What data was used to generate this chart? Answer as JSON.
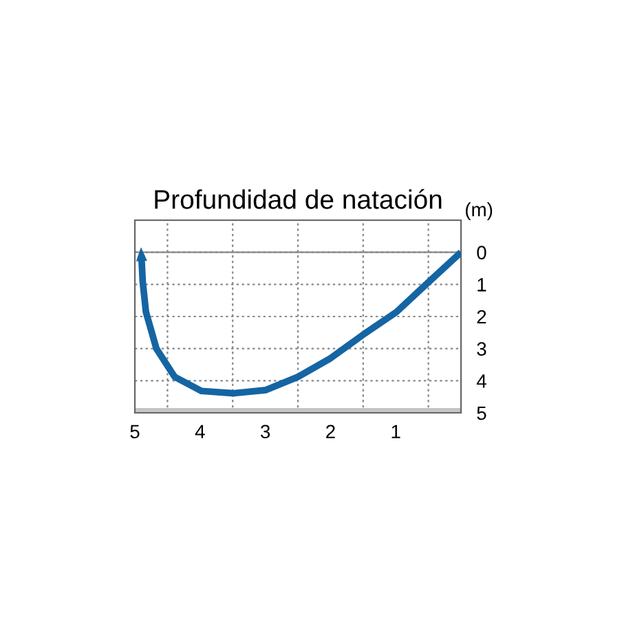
{
  "chart_data": {
    "type": "line",
    "title": "Profundidad de natación",
    "ylabel": "(m)",
    "x": [
      0,
      0.53,
      0.99,
      1.51,
      2.0,
      2.5,
      2.99,
      3.48,
      3.98,
      4.39,
      4.67,
      4.83,
      4.88,
      4.9
    ],
    "series": [
      {
        "color": "#1565a3",
        "values": [
          0,
          0.99,
          1.86,
          2.58,
          3.3,
          3.88,
          4.29,
          4.39,
          4.32,
          3.88,
          3.0,
          1.86,
          0.9,
          0.1
        ]
      }
    ],
    "xlim": [
      5,
      0
    ],
    "ylim": [
      5,
      -1
    ],
    "xticks": [
      5,
      4,
      3,
      2,
      1,
      {
        "value": 4.5,
        "label": null
      },
      {
        "value": 3.5,
        "label": null
      },
      {
        "value": 2.5,
        "label": null
      },
      {
        "value": 1.5,
        "label": null
      },
      {
        "value": 0.5,
        "label": null
      }
    ],
    "yticks": [
      0,
      1,
      2,
      3,
      4,
      5
    ],
    "grid": true,
    "ref_lines": [
      {
        "axis": "y",
        "value": 0,
        "color": "#888888"
      }
    ],
    "bands": [
      {
        "axis": "y",
        "from": 4.85,
        "to": 5,
        "color": "#c4c4c4"
      }
    ]
  }
}
